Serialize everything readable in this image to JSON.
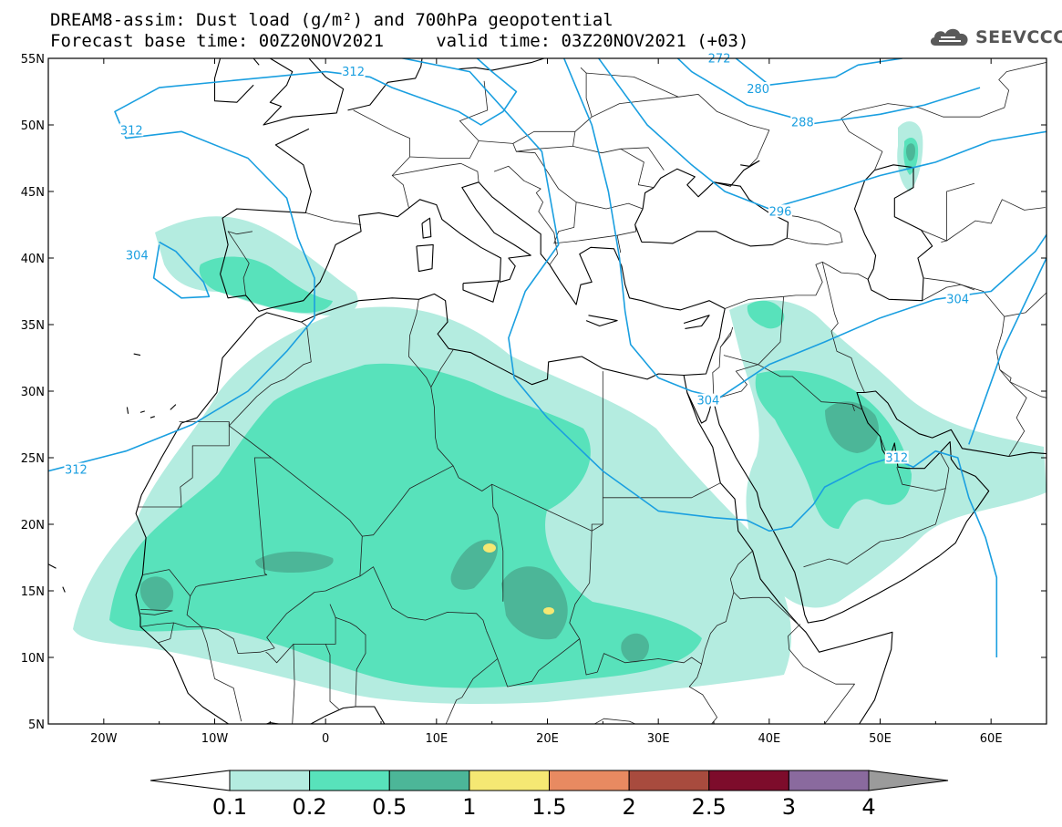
{
  "title_line1": "DREAM8-assim: Dust load (g/m²) and 700hPa geopotential",
  "title_line2": "Forecast base time: 00Z20NOV2021     valid time: 03Z20NOV2021 (+03)",
  "logo": {
    "text": "SEEVCCC",
    "icon": "cloud-logo-icon",
    "color": "#5a5a5a"
  },
  "map": {
    "lon_range": [
      -25,
      65
    ],
    "lat_range": [
      5,
      55
    ],
    "lat_ticks": [
      {
        "value": 55,
        "label": "55N"
      },
      {
        "value": 50,
        "label": "50N"
      },
      {
        "value": 45,
        "label": "45N"
      },
      {
        "value": 40,
        "label": "40N"
      },
      {
        "value": 35,
        "label": "35N"
      },
      {
        "value": 30,
        "label": "30N"
      },
      {
        "value": 25,
        "label": "25N"
      },
      {
        "value": 20,
        "label": "20N"
      },
      {
        "value": 15,
        "label": "15N"
      },
      {
        "value": 10,
        "label": "10N"
      },
      {
        "value": 5,
        "label": "5N"
      }
    ],
    "lon_ticks": [
      {
        "value": -20,
        "label": "20W"
      },
      {
        "value": -10,
        "label": "10W"
      },
      {
        "value": 0,
        "label": "0"
      },
      {
        "value": 10,
        "label": "10E"
      },
      {
        "value": 20,
        "label": "20E"
      },
      {
        "value": 30,
        "label": "30E"
      },
      {
        "value": 40,
        "label": "40E"
      },
      {
        "value": 50,
        "label": "50E"
      },
      {
        "value": 60,
        "label": "60E"
      }
    ],
    "contour_color": "#1a9fe0",
    "contour_labels": [
      {
        "text": "312",
        "lon": -22.5,
        "lat": 24.0
      },
      {
        "text": "312",
        "lon": -17.5,
        "lat": 49.5
      },
      {
        "text": "312",
        "lon": 2.5,
        "lat": 53.9
      },
      {
        "text": "312",
        "lon": 51.5,
        "lat": 24.9
      },
      {
        "text": "304",
        "lon": -17.0,
        "lat": 40.1
      },
      {
        "text": "304",
        "lon": 34.5,
        "lat": 29.2
      },
      {
        "text": "304",
        "lon": 57.0,
        "lat": 36.8
      },
      {
        "text": "296",
        "lon": 41.0,
        "lat": 43.4
      },
      {
        "text": "288",
        "lon": 43.0,
        "lat": 50.1
      },
      {
        "text": "280",
        "lon": 39.0,
        "lat": 52.6
      },
      {
        "text": "272",
        "lon": 35.5,
        "lat": 54.9
      }
    ]
  },
  "legend": {
    "labels": [
      "0.1",
      "0.2",
      "0.5",
      "1",
      "1.5",
      "2",
      "2.5",
      "3",
      "4"
    ],
    "colors": [
      "#ffffff",
      "#b4ece0",
      "#58e2bb",
      "#4cb698",
      "#f5e873",
      "#e88a61",
      "#a84b3e",
      "#7d0c2b",
      "#8a6a9e",
      "#9b9b9b"
    ]
  }
}
